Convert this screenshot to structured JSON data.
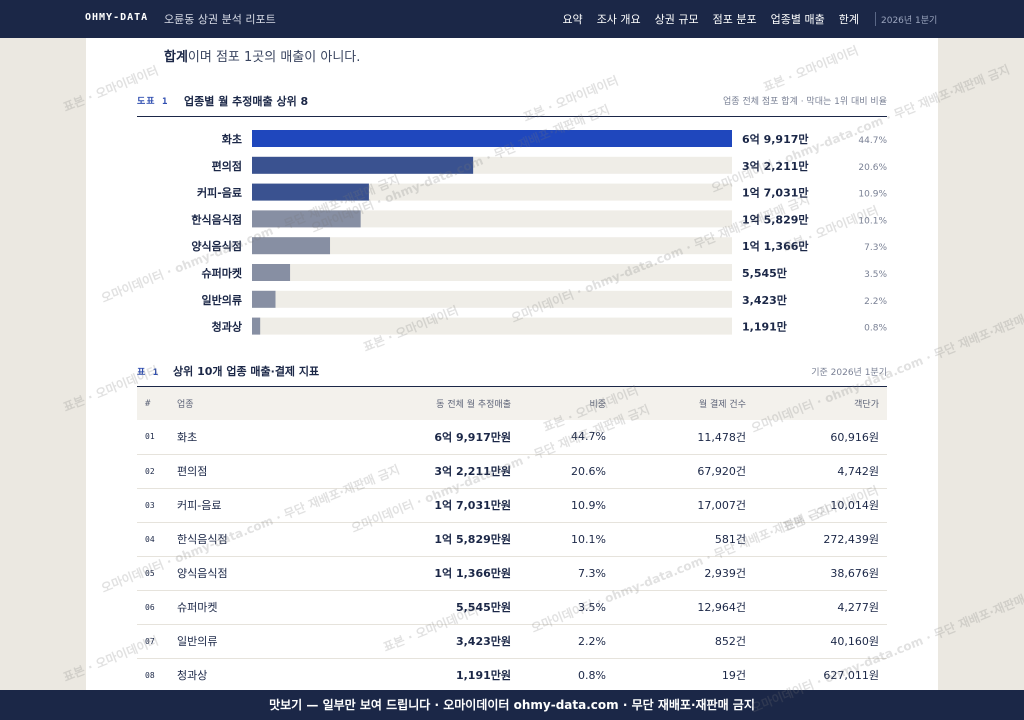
{
  "header": {
    "brand": "OHMY-DATA",
    "subtitle": "오륜동 상권 분석 리포트",
    "nav": [
      "요약",
      "조사 개요",
      "상권 규모",
      "점포 분포",
      "업종별 매출",
      "한계"
    ],
    "period": "2026년 1분기"
  },
  "lead": {
    "bold": "합계",
    "rest": "이며 점포 1곳의 매출이 아니다."
  },
  "figure": {
    "label": "도표 1",
    "title": "업종별 월 추정매출 상위 8",
    "note": "업종 전체 점포 합계 · 막대는 1위 대비 비율"
  },
  "chart_data": {
    "type": "bar",
    "orientation": "horizontal",
    "categories": [
      "화초",
      "편의점",
      "커피-음료",
      "한식음식점",
      "양식음식점",
      "슈퍼마켓",
      "일반의류",
      "청과상"
    ],
    "values": [
      69917,
      32211,
      17031,
      15829,
      11366,
      5545,
      3423,
      1191
    ],
    "value_labels": [
      "6억 9,917만",
      "3억 2,211만",
      "1억 7,031만",
      "1억 5,829만",
      "1억 1,366만",
      "5,545만",
      "3,423만",
      "1,191만"
    ],
    "shares": [
      "44.7%",
      "20.6%",
      "10.9%",
      "10.1%",
      "7.3%",
      "3.5%",
      "2.2%",
      "0.8%"
    ],
    "colors": [
      "#1f47bd",
      "#3a5290",
      "#3a5290",
      "#878fa3",
      "#878fa3",
      "#878fa3",
      "#878fa3",
      "#878fa3"
    ],
    "track_color": "#efede7",
    "xlim": [
      0,
      69917
    ]
  },
  "table": {
    "label": "표 1",
    "title": "상위 10개 업종 매출·결제 지표",
    "note": "기준 2026년 1분기",
    "columns": [
      "#",
      "업종",
      "동 전체 월 추정매출",
      "비중",
      "월 결제 건수",
      "객단가"
    ],
    "rows": [
      [
        "01",
        "화초",
        "6억 9,917만원",
        "44.7%",
        "11,478건",
        "60,916원"
      ],
      [
        "02",
        "편의점",
        "3억 2,211만원",
        "20.6%",
        "67,920건",
        "4,742원"
      ],
      [
        "03",
        "커피-음료",
        "1억 7,031만원",
        "10.9%",
        "17,007건",
        "10,014원"
      ],
      [
        "04",
        "한식음식점",
        "1억 5,829만원",
        "10.1%",
        "581건",
        "272,439원"
      ],
      [
        "05",
        "양식음식점",
        "1억 1,366만원",
        "7.3%",
        "2,939건",
        "38,676원"
      ],
      [
        "06",
        "슈퍼마켓",
        "5,545만원",
        "3.5%",
        "12,964건",
        "4,277원"
      ],
      [
        "07",
        "일반의류",
        "3,423만원",
        "2.2%",
        "852건",
        "40,160원"
      ],
      [
        "08",
        "청과상",
        "1,191만원",
        "0.8%",
        "19건",
        "627,011원"
      ]
    ]
  },
  "footer": "맛보기 — 일부만 보여 드립니다 · 오마이데이터 ohmy-data.com · 무단 재배포·재판매 금지",
  "watermark": [
    "표본 · 오마이데이터",
    "오마이데이터 · ohmy-data.com · 무단 재배포·재판매 금지"
  ]
}
